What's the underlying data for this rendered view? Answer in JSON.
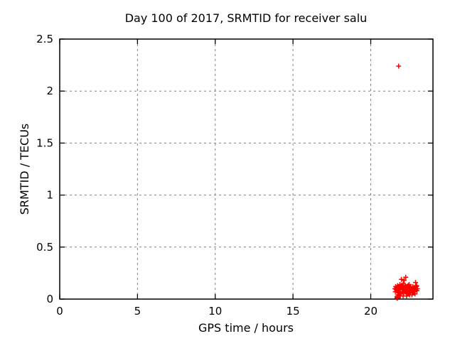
{
  "window": {
    "background_color": "#ffffff"
  },
  "colors": {
    "frame": "#000000",
    "grid": "#808080",
    "marker": "#ff0000",
    "text": "#000000"
  },
  "chart_data": {
    "type": "scatter",
    "title": "Day 100 of 2017, SRMTID for receiver salu",
    "xlabel": "GPS time / hours",
    "ylabel": "SRMTID / TECUs",
    "xlim": [
      0,
      24
    ],
    "ylim": [
      0,
      2.5
    ],
    "xticks": {
      "values": [
        0,
        5,
        10,
        15,
        20
      ],
      "labels": [
        "0",
        "5",
        "10",
        "15",
        "20"
      ]
    },
    "yticks": {
      "values": [
        0,
        0.5,
        1,
        1.5,
        2,
        2.5
      ],
      "labels": [
        "0",
        "0.5",
        "1",
        "1.5",
        "2",
        "2.5"
      ]
    },
    "grid": true,
    "grid_style": "dashed",
    "legend_position": "none",
    "marker": {
      "shape": "plus",
      "color": "#ff0000",
      "size": 7
    },
    "series": [
      {
        "name": "SRMTID",
        "points": [
          [
            21.79,
            2.24
          ],
          [
            21.68,
            0.01
          ],
          [
            21.7,
            0.02
          ],
          [
            21.71,
            0.015
          ],
          [
            21.69,
            0.025
          ],
          [
            21.72,
            0.01
          ],
          [
            21.55,
            0.1
          ],
          [
            21.58,
            0.07
          ],
          [
            21.6,
            0.12
          ],
          [
            21.63,
            0.09
          ],
          [
            21.66,
            0.11
          ],
          [
            21.7,
            0.08
          ],
          [
            21.73,
            0.13
          ],
          [
            21.75,
            0.04
          ],
          [
            21.76,
            0.1
          ],
          [
            21.79,
            0.06
          ],
          [
            21.82,
            0.12
          ],
          [
            21.85,
            0.09
          ],
          [
            21.88,
            0.14
          ],
          [
            21.9,
            0.07
          ],
          [
            21.9,
            0.03
          ],
          [
            21.93,
            0.11
          ],
          [
            21.95,
            0.05
          ],
          [
            21.97,
            0.19
          ],
          [
            21.98,
            0.13
          ],
          [
            22.0,
            0.1
          ],
          [
            22.02,
            0.07
          ],
          [
            22.05,
            0.12
          ],
          [
            22.07,
            0.09
          ],
          [
            22.08,
            0.03
          ],
          [
            22.1,
            0.15
          ],
          [
            22.12,
            0.06
          ],
          [
            22.15,
            0.18
          ],
          [
            22.15,
            0.11
          ],
          [
            22.17,
            0.08
          ],
          [
            22.2,
            0.13
          ],
          [
            22.22,
            0.1
          ],
          [
            22.25,
            0.21
          ],
          [
            22.25,
            0.07
          ],
          [
            22.27,
            0.12
          ],
          [
            22.3,
            0.03
          ],
          [
            22.3,
            0.09
          ],
          [
            22.33,
            0.05
          ],
          [
            22.35,
            0.11
          ],
          [
            22.37,
            0.08
          ],
          [
            22.4,
            0.13
          ],
          [
            22.42,
            0.06
          ],
          [
            22.45,
            0.1
          ],
          [
            22.47,
            0.14
          ],
          [
            22.5,
            0.04
          ],
          [
            22.5,
            0.08
          ],
          [
            22.53,
            0.11
          ],
          [
            22.55,
            0.07
          ],
          [
            22.57,
            0.12
          ],
          [
            22.6,
            0.09
          ],
          [
            22.63,
            0.1
          ],
          [
            22.65,
            0.04
          ],
          [
            22.68,
            0.08
          ],
          [
            22.7,
            0.12
          ],
          [
            22.72,
            0.06
          ],
          [
            22.75,
            0.09
          ],
          [
            22.78,
            0.11
          ],
          [
            22.8,
            0.07
          ],
          [
            22.83,
            0.1
          ],
          [
            22.85,
            0.05
          ],
          [
            22.88,
            0.16
          ],
          [
            22.9,
            0.09
          ],
          [
            22.93,
            0.12
          ],
          [
            22.95,
            0.13
          ],
          [
            22.97,
            0.08
          ],
          [
            23.0,
            0.1
          ]
        ]
      }
    ]
  }
}
